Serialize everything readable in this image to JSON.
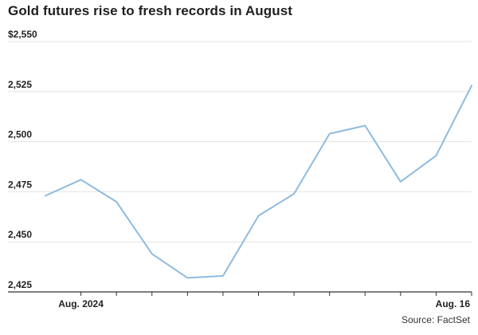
{
  "title": "Gold futures rise to fresh records in August",
  "source": "Source: FactSet",
  "colors": {
    "line": "#8dbbe0",
    "grid": "#e3e3e3",
    "axis": "#333333",
    "text": "#1f1f1f"
  },
  "chart_data": {
    "type": "line",
    "title": "Gold futures rise to fresh records in August",
    "xlabel": "",
    "ylabel": "",
    "ylim": [
      2425,
      2550
    ],
    "y_ticks": [
      "2,425",
      "2,450",
      "2,475",
      "2,500",
      "2,525",
      "$2,550"
    ],
    "x_tick_labels": [
      "Aug. 2024",
      "Aug. 16"
    ],
    "grid": true,
    "legend": "none",
    "series": [
      {
        "values": [
          2473,
          2481,
          2470,
          2444,
          2432,
          2433,
          2463,
          2474,
          2504,
          2508,
          2480,
          2493,
          2528
        ]
      }
    ]
  }
}
